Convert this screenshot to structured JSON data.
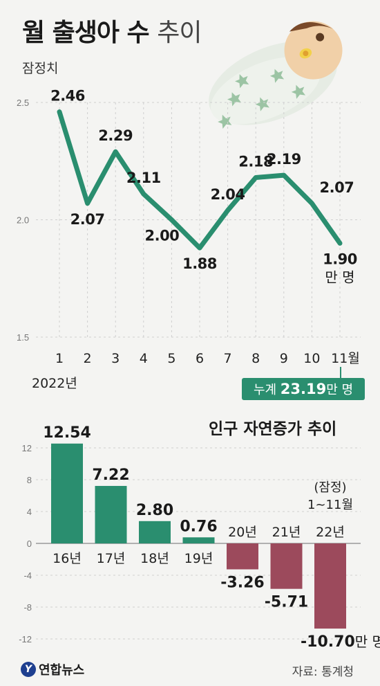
{
  "title_bold": "월 출생아 수",
  "title_thin": "추이",
  "note": "잠정치",
  "branding": {
    "logo_text": "연합뉴스",
    "logo_mark": "Y"
  },
  "source": "자료: 통계청",
  "colors": {
    "green": "#2a8e6f",
    "red": "#9c4a5c",
    "grid": "#cfcfcf"
  },
  "chart_data": [
    {
      "type": "line",
      "title": "월 출생아 수 추이",
      "subtitle": "잠정치",
      "x": [
        "1",
        "2",
        "3",
        "4",
        "5",
        "6",
        "7",
        "8",
        "9",
        "10",
        "11월"
      ],
      "x_extra_label": "2022년",
      "values": [
        2.46,
        2.07,
        2.29,
        2.11,
        2.0,
        1.88,
        2.04,
        2.18,
        2.19,
        2.07,
        1.9
      ],
      "value_labels": [
        "2.46",
        "2.07",
        "2.29",
        "2.11",
        "2.00",
        "1.88",
        "2.04",
        "2.18",
        "2.19",
        "2.07",
        "1.90"
      ],
      "unit_label": "만 명",
      "y_ticks": [
        "1.5",
        "2.0",
        "2.5"
      ],
      "ylim": [
        1.5,
        2.5
      ],
      "grid": "dashed-horizontal",
      "callout": {
        "prefix": "누계 ",
        "value": "23.19",
        "suffix": "만 명"
      }
    },
    {
      "type": "bar",
      "title": "인구 자연증가 추이",
      "categories": [
        "16년",
        "17년",
        "18년",
        "19년",
        "20년",
        "21년",
        "22년"
      ],
      "values": [
        12.54,
        7.22,
        2.8,
        0.76,
        -3.26,
        -5.71,
        -10.7
      ],
      "value_labels": [
        "12.54",
        "7.22",
        "2.80",
        "0.76",
        "-3.26",
        "-5.71",
        "-10.70"
      ],
      "last_unit": "만 명",
      "annotation_lines": [
        "(잠정)",
        "1~11월"
      ],
      "y_ticks": [
        "12",
        "8",
        "4",
        "0",
        "-4",
        "-8",
        "-12"
      ],
      "ylim": [
        -12,
        12
      ],
      "grid": "dashed-horizontal"
    }
  ]
}
